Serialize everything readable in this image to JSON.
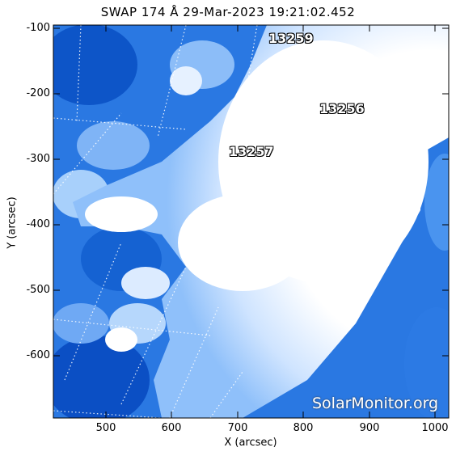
{
  "title": "SWAP 174 Å 29-Mar-2023 19:21:02.452",
  "xlabel": "X (arcsec)",
  "ylabel": "Y (arcsec)",
  "x_ticks": [
    "500",
    "600",
    "700",
    "800",
    "900",
    "1000"
  ],
  "y_ticks": [
    "-100",
    "-200",
    "-300",
    "-400",
    "-500",
    "-600"
  ],
  "active_regions": [
    "13259",
    "13256",
    "13257"
  ],
  "watermark": "SolarMonitor.org",
  "colors": {
    "deep_blue": "#0b4fc4",
    "mid_blue": "#2f7ee6",
    "light_blue": "#9cc8fb",
    "bright": "#ffffff"
  }
}
